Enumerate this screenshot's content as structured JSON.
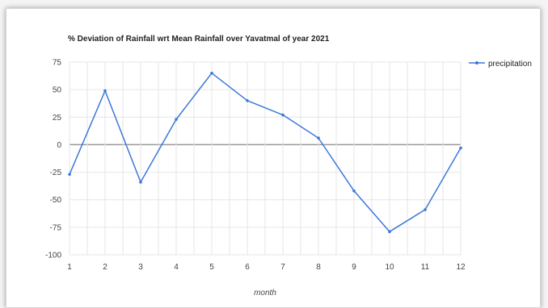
{
  "chart_data": {
    "type": "line",
    "title": "% Deviation of Rainfall wrt Mean Rainfall over Yavatmal of year 2021",
    "xlabel": "month",
    "ylabel": "",
    "x": [
      1,
      2,
      3,
      4,
      5,
      6,
      7,
      8,
      9,
      10,
      11,
      12
    ],
    "series": [
      {
        "name": "precipitation",
        "values": [
          -27,
          49,
          -34,
          23,
          65,
          40,
          27,
          6,
          -42,
          -79,
          -59,
          -3
        ]
      }
    ],
    "ylim": [
      -100,
      75
    ],
    "yticks": [
      "75",
      "50",
      "25",
      "0",
      "-25",
      "-50",
      "-75",
      "-100"
    ],
    "xticks": [
      "1",
      "2",
      "3",
      "4",
      "5",
      "6",
      "7",
      "8",
      "9",
      "10",
      "11",
      "12"
    ],
    "grid": true,
    "legend_position": "top-right",
    "colors": {
      "series": "#3c78d8",
      "zero_line": "#999999",
      "grid": "#e6e6e6"
    }
  }
}
